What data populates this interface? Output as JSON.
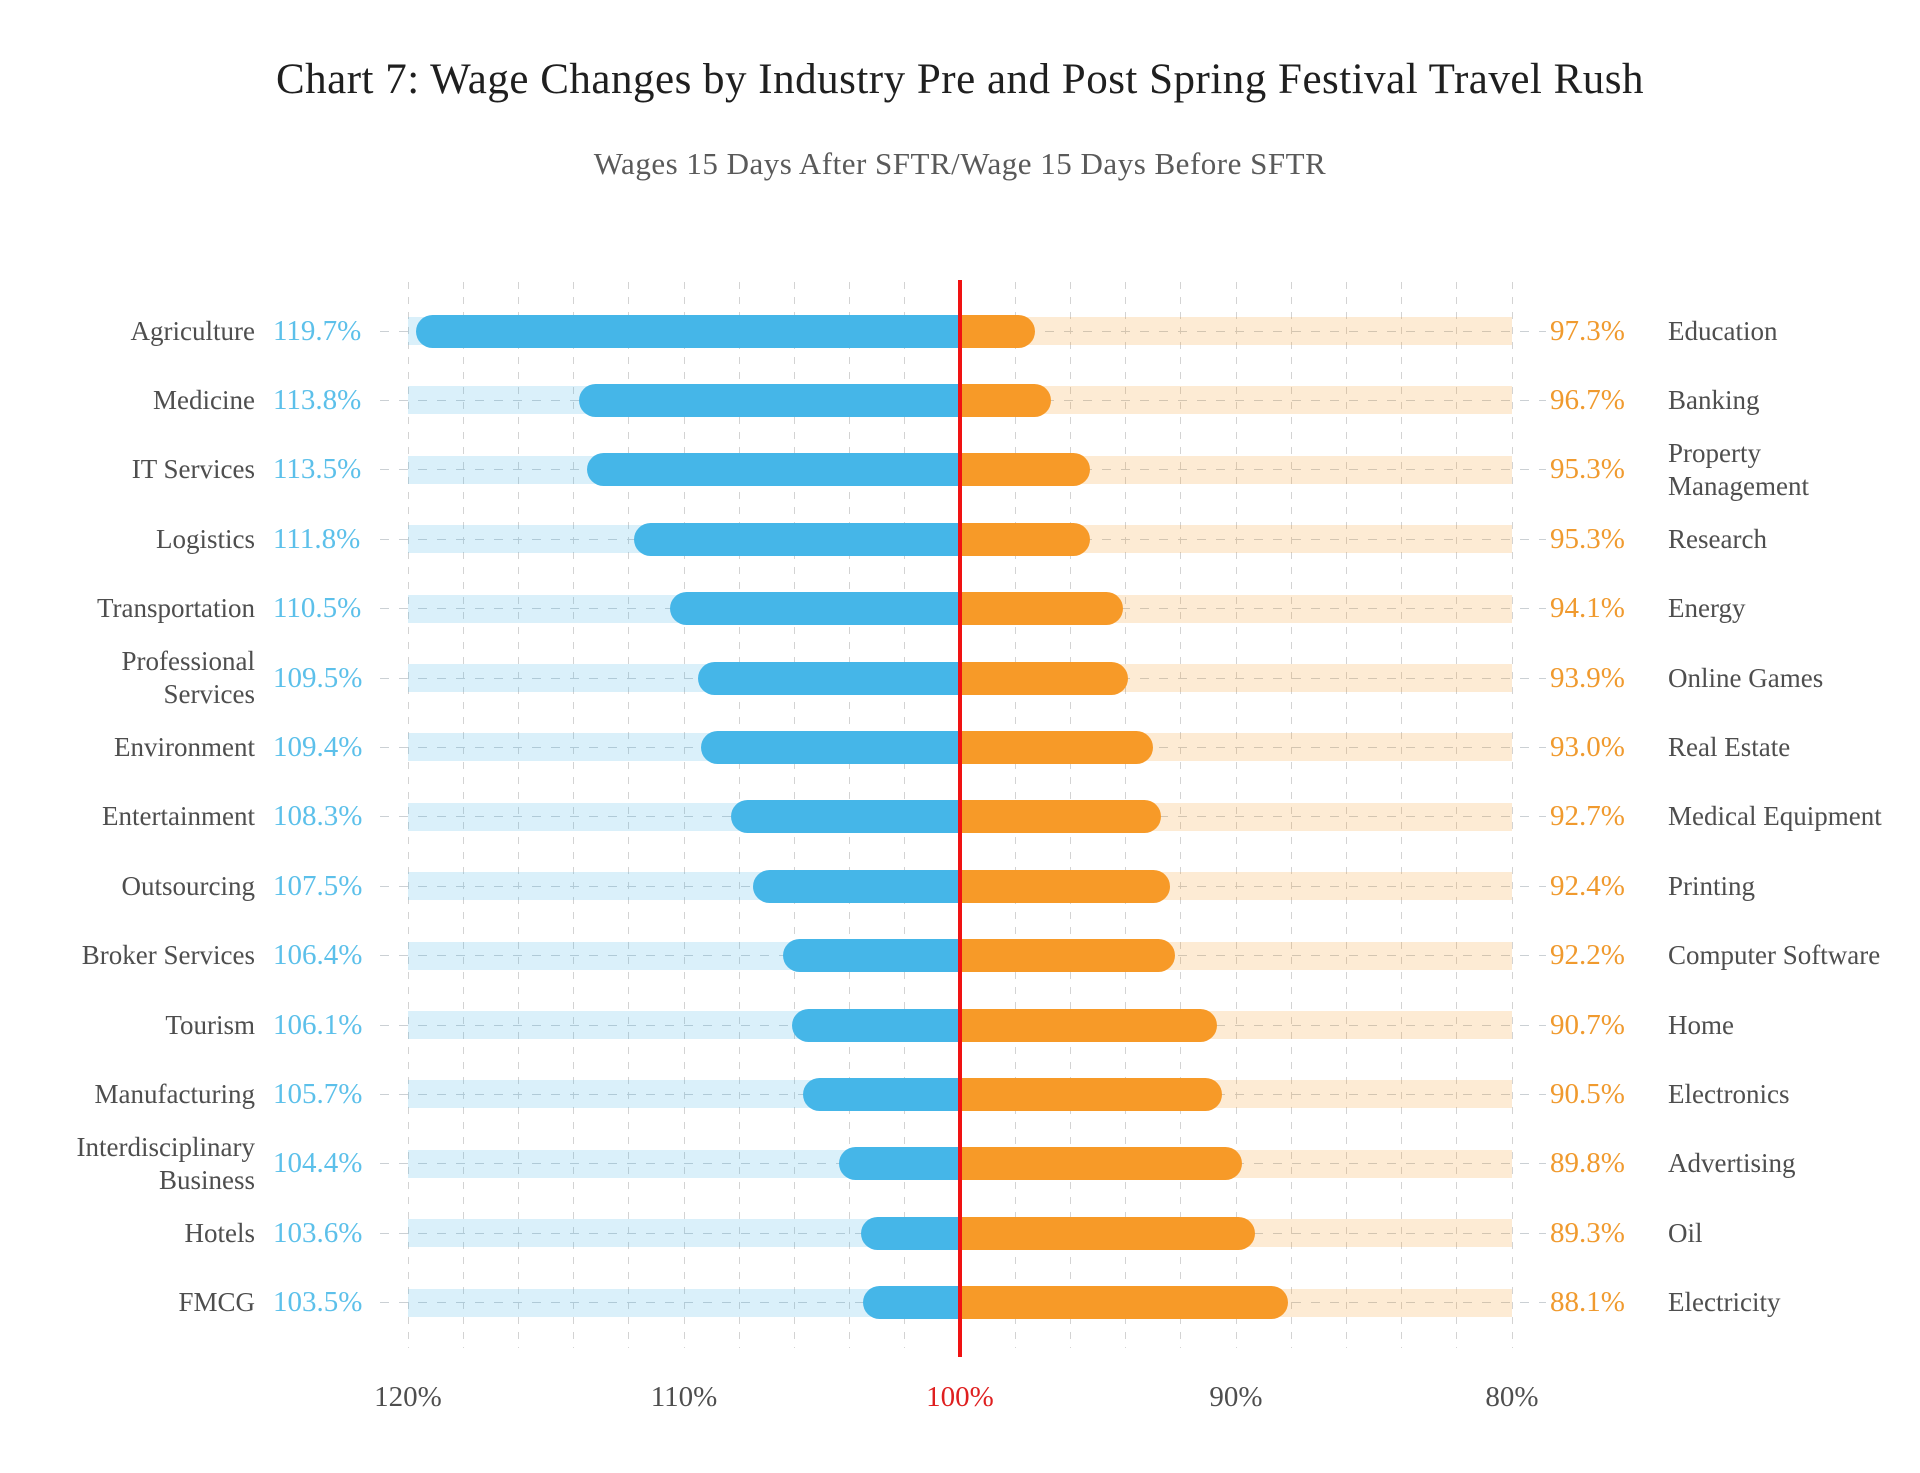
{
  "chart_data": {
    "type": "bar",
    "variant": "diverging-horizontal-tornado",
    "title": "Chart 7: Wage Changes by Industry Pre and Post Spring Festival Travel Rush",
    "subtitle": "Wages 15 Days After SFTR/Wage 15 Days Before SFTR",
    "axis": {
      "unit": "%",
      "min": 80,
      "max": 120,
      "center": 100,
      "reversed": true,
      "grid_step": 2,
      "grid_on": true,
      "ticks": [
        {
          "value": 120,
          "label": "120%",
          "highlight": false
        },
        {
          "value": 110,
          "label": "110%",
          "highlight": false
        },
        {
          "value": 100,
          "label": "100%",
          "highlight": true
        },
        {
          "value": 90,
          "label": "90%",
          "highlight": false
        },
        {
          "value": 80,
          "label": "80%",
          "highlight": false
        }
      ]
    },
    "rows": [
      {
        "left": {
          "label": "Agriculture",
          "value": 119.7,
          "display": "119.7%"
        },
        "right": {
          "label": "Education",
          "value": 97.3,
          "display": "97.3%"
        }
      },
      {
        "left": {
          "label": "Medicine",
          "value": 113.8,
          "display": "113.8%"
        },
        "right": {
          "label": "Banking",
          "value": 96.7,
          "display": "96.7%"
        }
      },
      {
        "left": {
          "label": "IT Services",
          "value": 113.5,
          "display": "113.5%"
        },
        "right": {
          "label": "Property Management",
          "value": 95.3,
          "display": "95.3%"
        }
      },
      {
        "left": {
          "label": "Logistics",
          "value": 111.8,
          "display": "111.8%"
        },
        "right": {
          "label": "Research",
          "value": 95.3,
          "display": "95.3%"
        }
      },
      {
        "left": {
          "label": "Transportation",
          "value": 110.5,
          "display": "110.5%"
        },
        "right": {
          "label": "Energy",
          "value": 94.1,
          "display": "94.1%"
        }
      },
      {
        "left": {
          "label": "Professional Services",
          "value": 109.5,
          "display": "109.5%"
        },
        "right": {
          "label": "Online Games",
          "value": 93.9,
          "display": "93.9%"
        }
      },
      {
        "left": {
          "label": "Environment",
          "value": 109.4,
          "display": "109.4%"
        },
        "right": {
          "label": "Real Estate",
          "value": 93.0,
          "display": "93.0%"
        }
      },
      {
        "left": {
          "label": "Entertainment",
          "value": 108.3,
          "display": "108.3%"
        },
        "right": {
          "label": "Medical Equipment",
          "value": 92.7,
          "display": "92.7%"
        }
      },
      {
        "left": {
          "label": "Outsourcing",
          "value": 107.5,
          "display": "107.5%"
        },
        "right": {
          "label": "Printing",
          "value": 92.4,
          "display": "92.4%"
        }
      },
      {
        "left": {
          "label": "Broker Services",
          "value": 106.4,
          "display": "106.4%"
        },
        "right": {
          "label": "Computer Software",
          "value": 92.2,
          "display": "92.2%"
        }
      },
      {
        "left": {
          "label": "Tourism",
          "value": 106.1,
          "display": "106.1%"
        },
        "right": {
          "label": "Home",
          "value": 90.7,
          "display": "90.7%"
        }
      },
      {
        "left": {
          "label": "Manufacturing",
          "value": 105.7,
          "display": "105.7%"
        },
        "right": {
          "label": "Electronics",
          "value": 90.5,
          "display": "90.5%"
        }
      },
      {
        "left": {
          "label": "Interdisciplinary Business",
          "value": 104.4,
          "display": "104.4%"
        },
        "right": {
          "label": "Advertising",
          "value": 89.8,
          "display": "89.8%"
        }
      },
      {
        "left": {
          "label": "Hotels",
          "value": 103.6,
          "display": "103.6%"
        },
        "right": {
          "label": "Oil",
          "value": 89.3,
          "display": "89.3%"
        }
      },
      {
        "left": {
          "label": "FMCG",
          "value": 103.5,
          "display": "103.5%"
        },
        "right": {
          "label": "Electricity",
          "value": 88.1,
          "display": "88.1%"
        }
      }
    ],
    "colors": {
      "bar_left": "#45B6E8",
      "bar_right": "#F79A28",
      "track_left": "rgba(69,182,232,0.20)",
      "track_right": "rgba(247,154,40,0.20)",
      "center_line": "#F01212",
      "value_left_text": "#5CC0EA",
      "value_right_text": "#F09A2E",
      "label_text": "#4E4E4E",
      "axis_text": "#4E4E4E",
      "axis_center_text": "#DF1F1F",
      "grid": "#D3D3D3"
    }
  }
}
